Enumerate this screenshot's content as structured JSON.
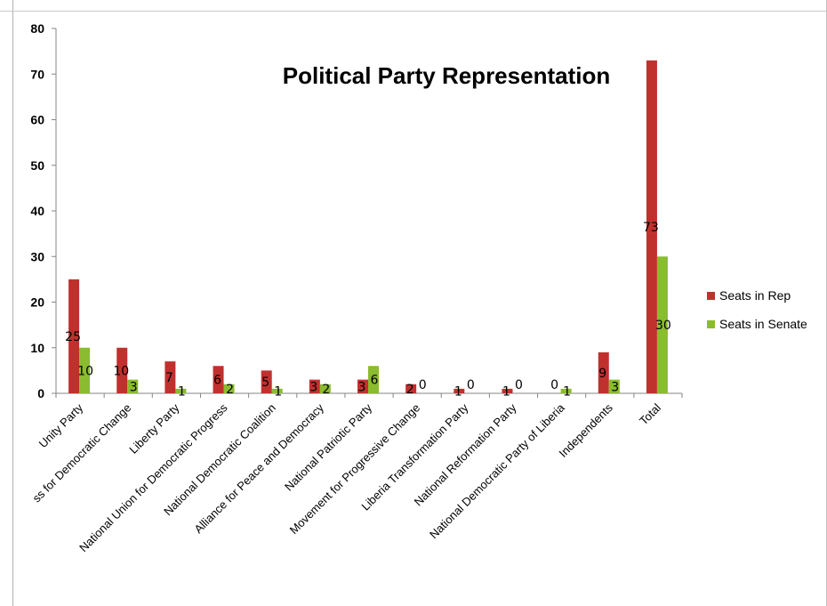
{
  "chart_data": {
    "type": "bar",
    "title": "Political Party Representation",
    "xlabel": "",
    "ylabel": "",
    "ylim": [
      0,
      80
    ],
    "yticks": [
      0,
      10,
      20,
      30,
      40,
      50,
      60,
      70,
      80
    ],
    "grid": false,
    "legend_position": "right",
    "categories": [
      "Unity Party",
      "ss for Democratic Change",
      "Liberty Party",
      "National Union for Democratic Progress",
      "National Democratic Coalition",
      "Alliance for Peace and Democracy",
      "National Patriotic Party",
      "Movement for Progressive Change",
      "Liberia Transformation Party",
      "National Reformation Party",
      "National Democratic Party of Liberia",
      "Independents",
      "Total"
    ],
    "series": [
      {
        "name": "Seats in Rep",
        "color": "#c0312e",
        "values": [
          25,
          10,
          7,
          6,
          5,
          3,
          3,
          2,
          1,
          1,
          0,
          9,
          73
        ]
      },
      {
        "name": "Seats in Senate",
        "color": "#8bbb2e",
        "values": [
          10,
          3,
          1,
          2,
          1,
          2,
          6,
          0,
          0,
          0,
          1,
          3,
          30
        ]
      }
    ]
  }
}
